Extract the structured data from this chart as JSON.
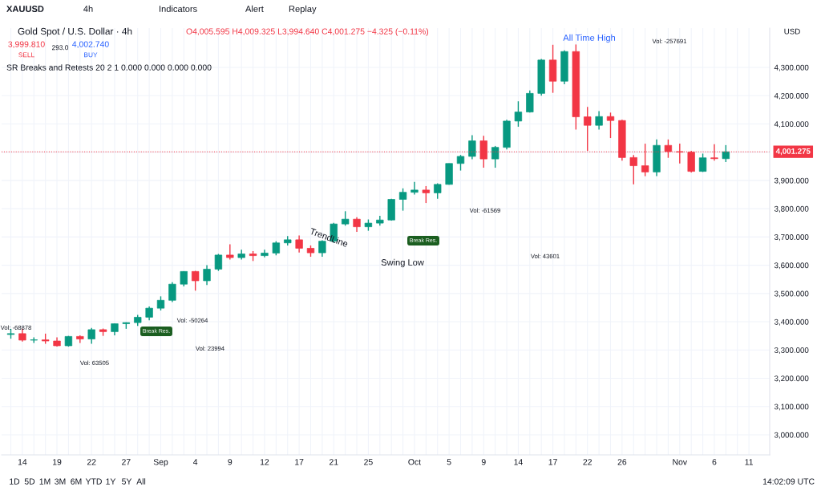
{
  "chart_data": {
    "type": "candlestick",
    "title": "Gold Spot / U.S. Dollar · 4h",
    "subtitle": "O4,005.595 H4,009.325 L3,994.640 C4,001.275 −4.325 (−0.11%)",
    "categories": [
      null,
      "14",
      null,
      null,
      "19",
      null,
      null,
      "22",
      null,
      null,
      "27",
      null,
      null,
      "Sep",
      null,
      null,
      "4",
      null,
      null,
      "9",
      null,
      null,
      "12",
      null,
      null,
      "17",
      null,
      null,
      "21",
      null,
      null,
      "25",
      null,
      null,
      null,
      "Oct",
      null,
      null,
      "5",
      null,
      null,
      "9",
      null,
      null,
      "14",
      null,
      null,
      "17",
      null,
      null,
      "22",
      null,
      null,
      "26",
      null,
      null,
      null,
      null,
      "Nov",
      null,
      null,
      "6",
      null,
      null,
      "11"
    ],
    "ohlc": [
      [
        3355,
        3375,
        3340,
        3358
      ],
      [
        3358,
        3375,
        3330,
        3335
      ],
      [
        3335,
        3345,
        3325,
        3336
      ],
      [
        3336,
        3358,
        3322,
        3332
      ],
      [
        3332,
        3345,
        3312,
        3315
      ],
      [
        3315,
        3350,
        3312,
        3348
      ],
      [
        3348,
        3352,
        3325,
        3339
      ],
      [
        3339,
        3378,
        3322,
        3372
      ],
      [
        3372,
        3376,
        3350,
        3365
      ],
      [
        3365,
        3394,
        3352,
        3393
      ],
      [
        3393,
        3398,
        3375,
        3397
      ],
      [
        3397,
        3424,
        3385,
        3416
      ],
      [
        3416,
        3454,
        3405,
        3448
      ],
      [
        3448,
        3490,
        3440,
        3476
      ],
      [
        3476,
        3540,
        3470,
        3533
      ],
      [
        3533,
        3578,
        3525,
        3578
      ],
      [
        3578,
        3580,
        3510,
        3545
      ],
      [
        3545,
        3600,
        3530,
        3586
      ],
      [
        3586,
        3640,
        3580,
        3636
      ],
      [
        3636,
        3674,
        3620,
        3627
      ],
      [
        3627,
        3655,
        3620,
        3640
      ],
      [
        3640,
        3650,
        3615,
        3634
      ],
      [
        3634,
        3655,
        3628,
        3643
      ],
      [
        3643,
        3685,
        3635,
        3679
      ],
      [
        3679,
        3703,
        3670,
        3690
      ],
      [
        3690,
        3705,
        3645,
        3660
      ],
      [
        3660,
        3670,
        3630,
        3644
      ],
      [
        3644,
        3688,
        3630,
        3685
      ],
      [
        3685,
        3750,
        3680,
        3746
      ],
      [
        3746,
        3791,
        3740,
        3763
      ],
      [
        3763,
        3770,
        3718,
        3736
      ],
      [
        3736,
        3762,
        3722,
        3749
      ],
      [
        3749,
        3775,
        3740,
        3760
      ],
      [
        3760,
        3835,
        3758,
        3833
      ],
      [
        3833,
        3872,
        3793,
        3858
      ],
      [
        3858,
        3895,
        3850,
        3866
      ],
      [
        3866,
        3880,
        3820,
        3856
      ],
      [
        3856,
        3890,
        3835,
        3886
      ],
      [
        3886,
        3960,
        3885,
        3960
      ],
      [
        3960,
        3990,
        3935,
        3985
      ],
      [
        3985,
        4060,
        3975,
        4040
      ],
      [
        4040,
        4058,
        3945,
        3976
      ],
      [
        3976,
        4022,
        3945,
        4017
      ],
      [
        4017,
        4115,
        4010,
        4110
      ],
      [
        4110,
        4180,
        4090,
        4142
      ],
      [
        4142,
        4218,
        4140,
        4208
      ],
      [
        4208,
        4330,
        4200,
        4326
      ],
      [
        4326,
        4380,
        4210,
        4251
      ],
      [
        4251,
        4360,
        4240,
        4356
      ],
      [
        4356,
        4381,
        4080,
        4125
      ],
      [
        4125,
        4160,
        4005,
        4095
      ],
      [
        4095,
        4145,
        4080,
        4126
      ],
      [
        4126,
        4140,
        4050,
        4112
      ],
      [
        4112,
        4115,
        3970,
        3981
      ],
      [
        3981,
        3990,
        3886,
        3952
      ],
      [
        3952,
        4030,
        3915,
        3930
      ],
      [
        3930,
        4045,
        3915,
        4024
      ],
      [
        4024,
        4045,
        3980,
        4002
      ],
      [
        4002,
        4030,
        3960,
        4000
      ],
      [
        4000,
        4005,
        3928,
        3932
      ],
      [
        3932,
        3995,
        3930,
        3980
      ],
      [
        3980,
        4028,
        3970,
        3977
      ],
      [
        3977,
        4025,
        3965,
        4001.275
      ],
      null,
      null
    ],
    "colors": [
      "#089981",
      "#f23645",
      "#089981",
      "#f23645",
      "#f23645",
      "#089981",
      "#f23645",
      "#089981",
      "#f23645",
      "#089981",
      "#089981",
      "#089981",
      "#089981",
      "#089981",
      "#089981",
      "#089981",
      "#f23645",
      "#089981",
      "#089981",
      "#f23645",
      "#089981",
      "#f23645",
      "#089981",
      "#089981",
      "#089981",
      "#f23645",
      "#f23645",
      "#089981",
      "#089981",
      "#089981",
      "#f23645",
      "#089981",
      "#089981",
      "#089981",
      "#089981",
      "#089981",
      "#f23645",
      "#089981",
      "#089981",
      "#089981",
      "#089981",
      "#f23645",
      "#089981",
      "#089981",
      "#089981",
      "#089981",
      "#089981",
      "#f23645",
      "#089981",
      "#f23645",
      "#f23645",
      "#089981",
      "#f23645",
      "#f23645",
      "#f23645",
      "#f23645",
      "#089981",
      "#f23645",
      "#f23645",
      "#f23645",
      "#089981",
      "#f23645",
      "#089981",
      "#089981",
      "#089981"
    ],
    "ylim": [
      2929,
      4439
    ],
    "yticks": [
      {
        "value": 3000,
        "label": "3,000.000"
      },
      {
        "value": 3100,
        "label": "3,100.000"
      },
      {
        "value": 3200,
        "label": "3,200.000"
      },
      {
        "value": 3300,
        "label": "3,300.000"
      },
      {
        "value": 3400,
        "label": "3,400.000"
      },
      {
        "value": 3500,
        "label": "3,500.000"
      },
      {
        "value": 3600,
        "label": "3,600.000"
      },
      {
        "value": 3700,
        "label": "3,700.000"
      },
      {
        "value": 3800,
        "label": "3,800.000"
      },
      {
        "value": 3900,
        "label": "3,900.000"
      },
      {
        "value": 4000,
        "label": null
      },
      {
        "value": 4100,
        "label": "4,100.000"
      },
      {
        "value": 4200,
        "label": "4,200.000"
      },
      {
        "value": 4300,
        "label": "4,300.000"
      }
    ],
    "grid": true,
    "ref_lines": [
      {
        "axis": "y",
        "value": 4001.275,
        "label": "4,001.275",
        "color": "#f23645",
        "line_style": "dotted"
      }
    ],
    "annotations": [
      "XAUUSD",
      "4h",
      "Indicators",
      "Alert",
      "Replay",
      "3,999.810",
      "SELL",
      "293.0",
      "4,002.740",
      "BUY",
      "SR Breaks and Retests 20 2 1 0.000 0.000 0.000 0.000",
      "All Time High",
      "Vol: -257691",
      "Vol: -61569",
      "Vol: 43601",
      "Vol: -50264",
      "Vol: -68878",
      "Vol: 23994",
      "Vol: 63505",
      "TrendLine",
      "Swing Low",
      "Break Res.",
      "Break Res.",
      "USD",
      "1D",
      "5D",
      "1M",
      "3M",
      "6M",
      "YTD",
      "1Y",
      "5Y",
      "All",
      "14:02:09 UTC"
    ]
  }
}
